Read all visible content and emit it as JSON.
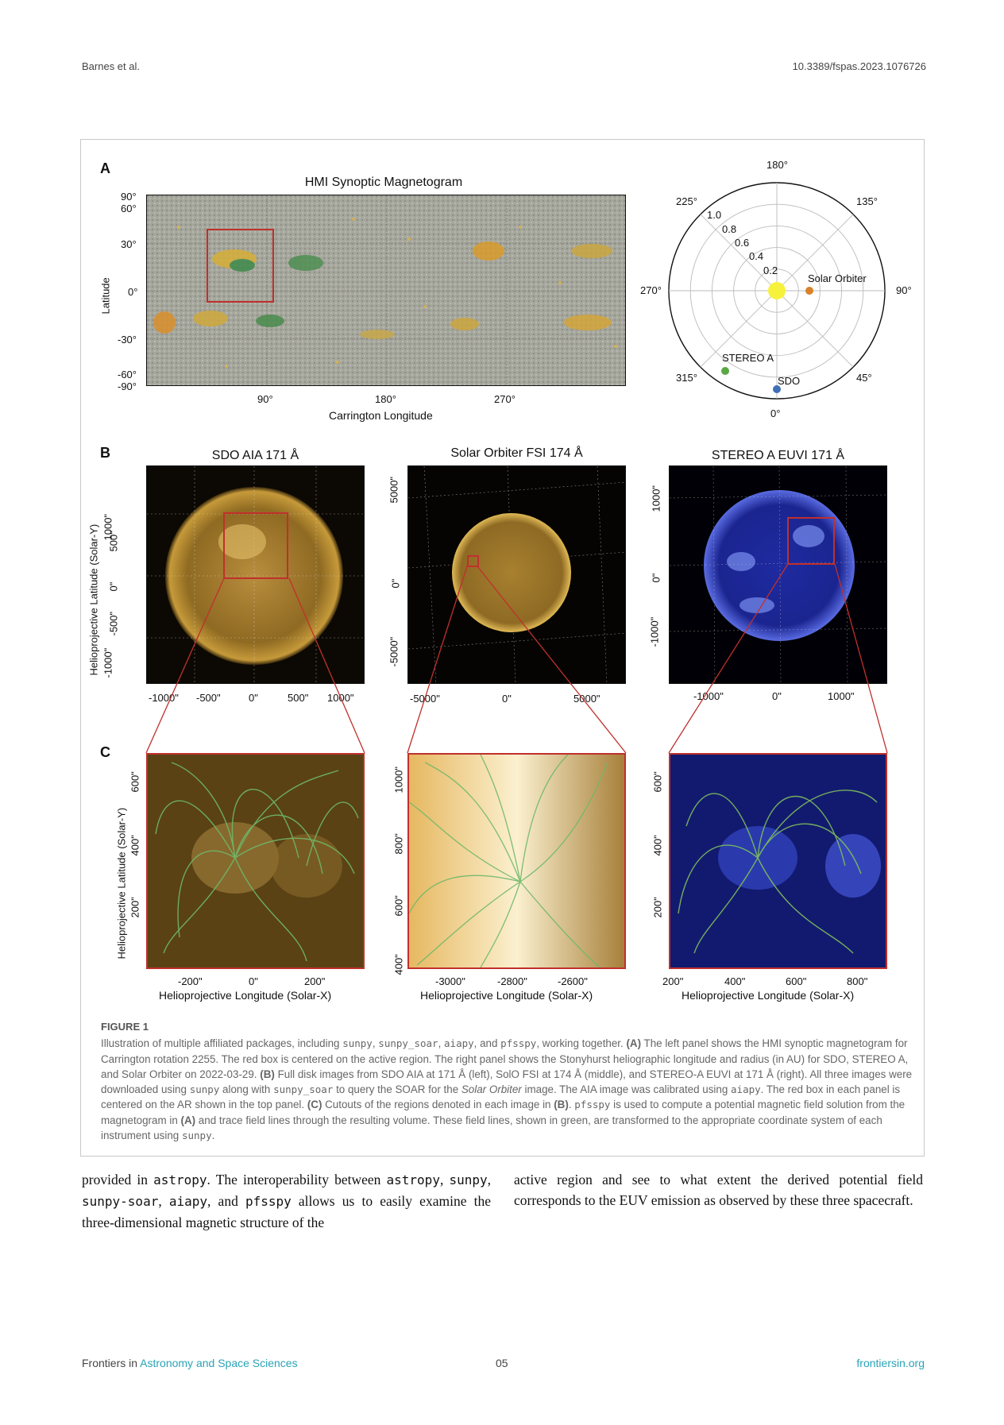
{
  "header": {
    "left": "Barnes et al.",
    "right": "10.3389/fspas.2023.1076726"
  },
  "figure": {
    "panel_a_letter": "A",
    "panel_b_letter": "B",
    "panel_c_letter": "C",
    "synoptic": {
      "title": "HMI Synoptic Magnetogram",
      "ylabel": "Latitude",
      "xlabel": "Carrington Longitude",
      "yticks": [
        "90°",
        "60°",
        "30°",
        "0°",
        "-30°",
        "-60°",
        "-90°"
      ],
      "xticks": [
        "90°",
        "180°",
        "270°"
      ]
    },
    "polar": {
      "angle_labels": [
        "180°",
        "135°",
        "90°",
        "45°",
        "0°",
        "315°",
        "270°",
        "225°"
      ],
      "radius_labels": [
        "1.0",
        "0.8",
        "0.6",
        "0.4",
        "0.2"
      ],
      "points": [
        {
          "name": "Solar Orbiter",
          "color": "#d9822b"
        },
        {
          "name": "STEREO A",
          "color": "#5aa845"
        },
        {
          "name": "SDO",
          "color": "#3f6fb5"
        }
      ]
    },
    "full_disk": [
      {
        "title": "SDO AIA 171 Å",
        "yticks": [
          "1000\"",
          "500\"",
          "0\"",
          "-500\"",
          "-1000\""
        ],
        "xticks": [
          "-1000\"",
          "-500\"",
          "0\"",
          "500\"",
          "1000\""
        ]
      },
      {
        "title": "Solar Orbiter FSI 174 Å",
        "yticks": [
          "5000\"",
          "0\"",
          "-5000\""
        ],
        "xticks": [
          "-5000\"",
          "0\"",
          "5000\""
        ]
      },
      {
        "title": "STEREO A EUVI 171 Å",
        "yticks": [
          "1000\"",
          "0\"",
          "-1000\""
        ],
        "xticks": [
          "-1000\"",
          "0\"",
          "1000\""
        ]
      }
    ],
    "full_disk_ylabel": "Helioprojective Latitude (Solar-Y)",
    "cutouts": [
      {
        "yticks": [
          "600\"",
          "400\"",
          "200\""
        ],
        "xticks": [
          "-200\"",
          "0\"",
          "200\""
        ]
      },
      {
        "yticks": [
          "1000\"",
          "800\"",
          "600\"",
          "400\""
        ],
        "xticks": [
          "-3000\"",
          "-2800\"",
          "-2600\""
        ]
      },
      {
        "yticks": [
          "600\"",
          "400\"",
          "200\""
        ],
        "xticks": [
          "200\"",
          "400\"",
          "600\"",
          "800\""
        ]
      }
    ],
    "cutout_ylabel": "Helioprojective Latitude (Solar-Y)",
    "cutout_xlabel": "Helioprojective Longitude (Solar-X)"
  },
  "caption": {
    "label": "FIGURE 1",
    "s1": "Illustration of multiple affiliated packages, including ",
    "pkg_sunpy": "sunpy",
    "pkg_sunpy_soar": "sunpy_soar",
    "pkg_aiapy": "aiapy",
    "pkg_pfsspy": "pfsspy",
    "s2": ", working together. ",
    "a_tag": "(A)",
    "s3": " The left panel shows the HMI synoptic magnetogram for Carrington rotation 2255. The red box is centered on the active region. The right panel shows the Stonyhurst heliographic longitude and radius (in AU) for SDO, STEREO A, and Solar Orbiter on 2022-03-29. ",
    "b_tag": "(B)",
    "s4": " Full disk images from SDO AIA at 171 Å (left), SolO FSI at 174 Å (middle), and STEREO-A EUVI at 171 Å (right). All three images were downloaded using ",
    "s5": " along with ",
    "s6": " to query the SOAR for the ",
    "solar_orbiter_it": "Solar Orbiter",
    "s7": " image. The AIA image was calibrated using ",
    "s8": ". The red box in each panel is centered on the AR shown in the top panel. ",
    "c_tag": "(C)",
    "s9": " Cutouts of the regions denoted in each image in ",
    "s10": ". ",
    "s11": " is used to compute a potential magnetic field solution from the magnetogram in ",
    "s12": " and trace field lines through the resulting volume. These field lines, shown in green, are transformed to the appropriate coordinate system of each instrument using ",
    "s13": "."
  },
  "body": {
    "l1": "provided in ",
    "astropy": "astropy",
    "l2": ". The interoperability between ",
    "l3": ", ",
    "sunpy": "sunpy",
    "sunpy_soar": "sunpy-soar",
    "aiapy": "aiapy",
    "and": ", and ",
    "pfsspy": "pfsspy",
    "l4": " allows us to easily examine the three-dimensional magnetic structure of the",
    "r1": "active region and see to what extent the derived potential field corresponds to the EUV emission as observed by these three spacecraft."
  },
  "footer": {
    "journal_prefix": "Frontiers in ",
    "journal_name": "Astronomy and Space Sciences",
    "page": "05",
    "site": "frontiersin.org"
  }
}
